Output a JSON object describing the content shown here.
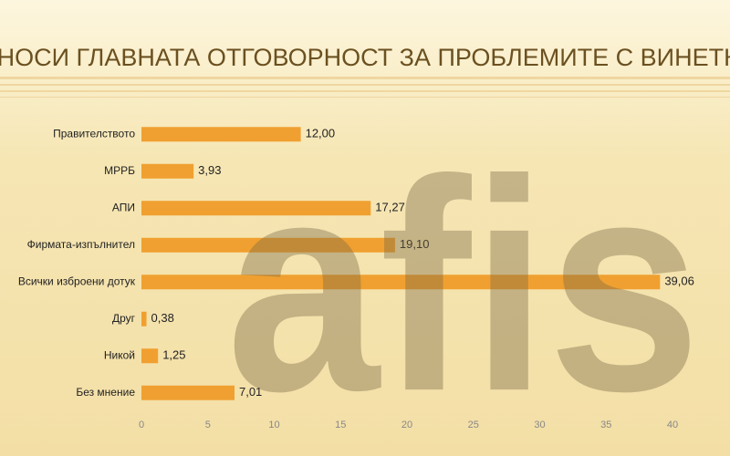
{
  "chart_data": {
    "type": "barh",
    "title": "КОЙ НОСИ ГЛАВНАТА ОТГОВОРНОСТ ЗА ПРОБЛЕМИТЕ С ВИНЕТКИТЕ",
    "watermark": "afis",
    "categories": [
      "Правителството",
      "МРРБ",
      "АПИ",
      "Фирмата-изпълнител",
      "Всички изброени дотук",
      "Друг",
      "Никой",
      "Без мнение"
    ],
    "values": [
      12.0,
      3.93,
      17.27,
      19.1,
      39.06,
      0.38,
      1.25,
      7.01
    ],
    "value_labels": [
      "12,00",
      "3,93",
      "17,27",
      "19,10",
      "39,06",
      "0,38",
      "1,25",
      "7,01"
    ],
    "color": "#f0a030",
    "xlim": [
      0,
      40
    ],
    "xticks": [
      0,
      5,
      10,
      15,
      20,
      25,
      30,
      35,
      40
    ]
  }
}
